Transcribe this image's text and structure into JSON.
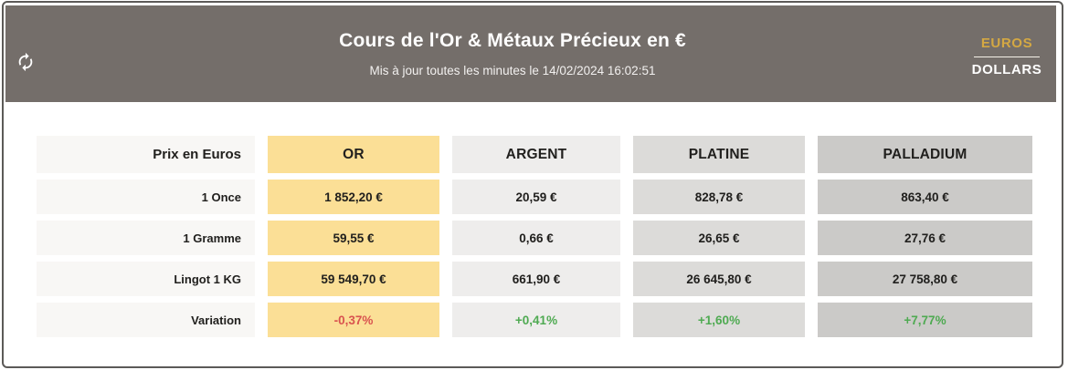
{
  "header": {
    "title": "Cours de l'Or & Métaux Précieux en €",
    "subtitle": "Mis à jour toutes les minutes le 14/02/2024 16:02:51",
    "background": "#746e6a"
  },
  "currency_toggle": {
    "selected": "EUROS",
    "unselected": "DOLLARS",
    "selected_color": "#d4a843"
  },
  "icons": {
    "refresh": "refresh-icon"
  },
  "table": {
    "corner_label": "Prix en Euros",
    "columns": [
      {
        "label": "OR",
        "bg": "#fbdf96"
      },
      {
        "label": "ARGENT",
        "bg": "#eeedec"
      },
      {
        "label": "PLATINE",
        "bg": "#dcdbd9"
      },
      {
        "label": "PALLADIUM",
        "bg": "#cbcac8"
      }
    ],
    "rows": [
      {
        "label": "1 Once",
        "values": [
          "1 852,20 €",
          "20,59 €",
          "828,78 €",
          "863,40 €"
        ]
      },
      {
        "label": "1 Gramme",
        "values": [
          "59,55 €",
          "0,66 €",
          "26,65 €",
          "27,76 €"
        ]
      },
      {
        "label": "Lingot 1 KG",
        "values": [
          "59 549,70 €",
          "661,90 €",
          "26 645,80 €",
          "27 758,80 €"
        ]
      },
      {
        "label": "Variation",
        "values": [
          "-0,37%",
          "+0,41%",
          "+1,60%",
          "+7,77%"
        ],
        "value_colors": [
          "#d9534f",
          "#4faa52",
          "#4faa52",
          "#4faa52"
        ]
      }
    ]
  }
}
